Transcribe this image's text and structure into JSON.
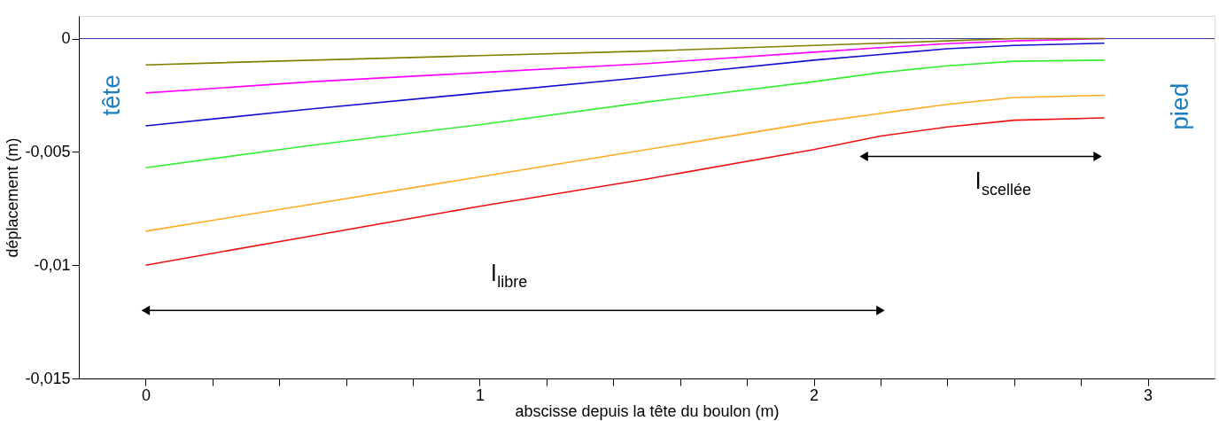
{
  "chart_data": {
    "type": "line",
    "xlabel": "abscisse depuis la tête du boulon (m)",
    "ylabel": "déplacement (m)",
    "x": [
      0,
      0.5,
      1,
      1.5,
      2,
      2.2,
      2.4,
      2.6,
      2.87
    ],
    "series": [
      {
        "color": "#ee1111",
        "values": [
          -0.01,
          -0.0087,
          -0.0074,
          -0.0062,
          -0.0049,
          -0.0043,
          -0.0039,
          -0.0036,
          -0.0035
        ]
      },
      {
        "color": "#ffaa22",
        "values": [
          -0.0085,
          -0.0073,
          -0.0061,
          -0.0049,
          -0.0037,
          -0.0033,
          -0.0029,
          -0.0026,
          -0.0025
        ]
      },
      {
        "color": "#33ee33",
        "values": [
          -0.0057,
          -0.0047,
          -0.0038,
          -0.0028,
          -0.0019,
          -0.0015,
          -0.0012,
          -0.001,
          -0.00095
        ]
      },
      {
        "color": "#1010d0",
        "values": [
          -0.00385,
          -0.0031,
          -0.0024,
          -0.0017,
          -0.00095,
          -0.0007,
          -0.00045,
          -0.0003,
          -0.0002
        ]
      },
      {
        "color": "#ff00ff",
        "values": [
          -0.0024,
          -0.0019,
          -0.0015,
          -0.0011,
          -0.0006,
          -0.0004,
          -0.00022,
          -0.0001,
          0
        ]
      },
      {
        "color": "#808000",
        "values": [
          -0.00116,
          -0.00095,
          -0.00075,
          -0.00055,
          -0.0003,
          -0.0002,
          -0.0001,
          0,
          0
        ]
      }
    ],
    "xlim": [
      -0.2,
      3.2
    ],
    "ylim": [
      -0.015,
      0.001
    ],
    "xticks": [
      0,
      {
        "value": 0.2,
        "label": null
      },
      {
        "value": 0.4,
        "label": null
      },
      {
        "value": 0.6,
        "label": null
      },
      {
        "value": 0.8,
        "label": null
      },
      1,
      {
        "value": 1.2,
        "label": null
      },
      {
        "value": 1.4,
        "label": null
      },
      {
        "value": 1.6,
        "label": null
      },
      {
        "value": 1.8,
        "label": null
      },
      2,
      {
        "value": 2.2,
        "label": null
      },
      {
        "value": 2.4,
        "label": null
      },
      {
        "value": 2.6,
        "label": null
      },
      {
        "value": 2.8,
        "label": null
      },
      3
    ],
    "yticks": [
      {
        "value": -0.015,
        "label": "-0,015"
      },
      {
        "value": -0.01,
        "label": "-0,01"
      },
      {
        "value": -0.005,
        "label": "-0,005"
      },
      0
    ],
    "ref_lines": [
      {
        "axis": "y",
        "value": 0,
        "color": "#3030a0"
      }
    ],
    "annotations": [
      "tête",
      "pied",
      "l$_{libre}$",
      "l$_{scellée}$"
    ],
    "grid": false,
    "legend": false,
    "marker": "none",
    "line_style": "solid"
  }
}
